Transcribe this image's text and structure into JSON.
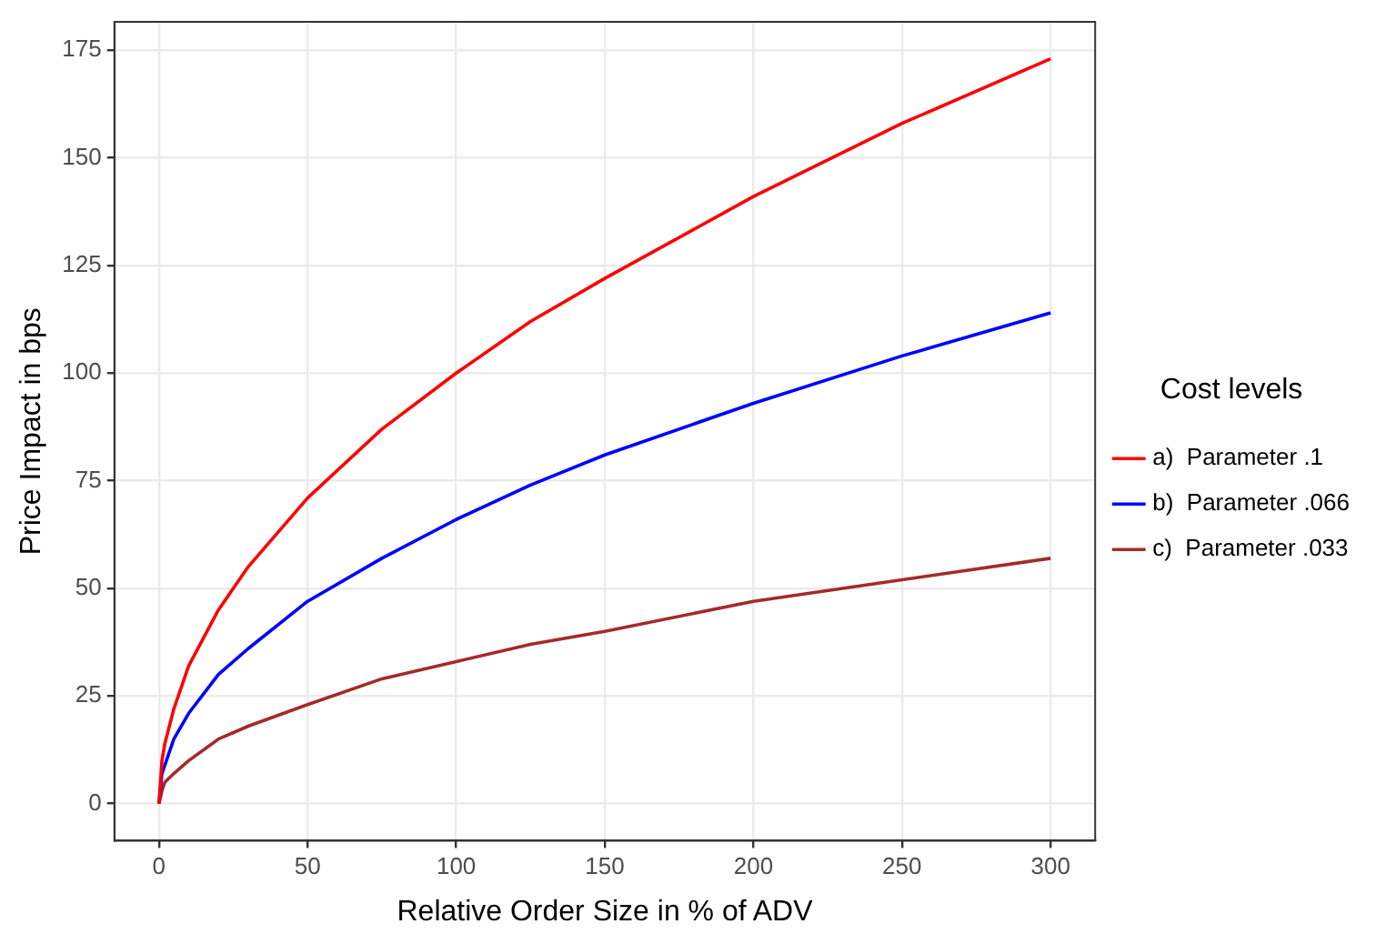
{
  "chart_data": {
    "type": "line",
    "xlabel": "Relative Order Size in % of ADV",
    "ylabel": "Price Impact in bps",
    "legend_title": "Cost levels",
    "legend": "right",
    "grid": true,
    "marker": "none",
    "line_style": "solid",
    "xlim": [
      -15,
      315
    ],
    "xticks": [
      0,
      50,
      100,
      150,
      200,
      250,
      300
    ],
    "ylim": [
      -8.6,
      181.6
    ],
    "yticks": [
      0,
      25,
      50,
      75,
      100,
      125,
      150,
      175
    ],
    "x": [
      0,
      1,
      2,
      5,
      10,
      20,
      30,
      50,
      75,
      100,
      125,
      150,
      200,
      250,
      300
    ],
    "series": [
      {
        "name": "a)  Parameter .1",
        "color": "#ff0000",
        "values": [
          0,
          10,
          14,
          22,
          32,
          45,
          55,
          71,
          87,
          100,
          112,
          122,
          141,
          158,
          173
        ]
      },
      {
        "name": "b)  Parameter .066",
        "color": "#0000ff",
        "values": [
          0,
          7,
          9,
          15,
          21,
          30,
          36,
          47,
          57,
          66,
          74,
          81,
          93,
          104,
          114
        ]
      },
      {
        "name": "c)  Parameter .033",
        "color": "#a52a2a",
        "values": [
          0,
          3,
          5,
          7,
          10,
          15,
          18,
          23,
          29,
          33,
          37,
          40,
          47,
          52,
          57
        ]
      }
    ]
  }
}
